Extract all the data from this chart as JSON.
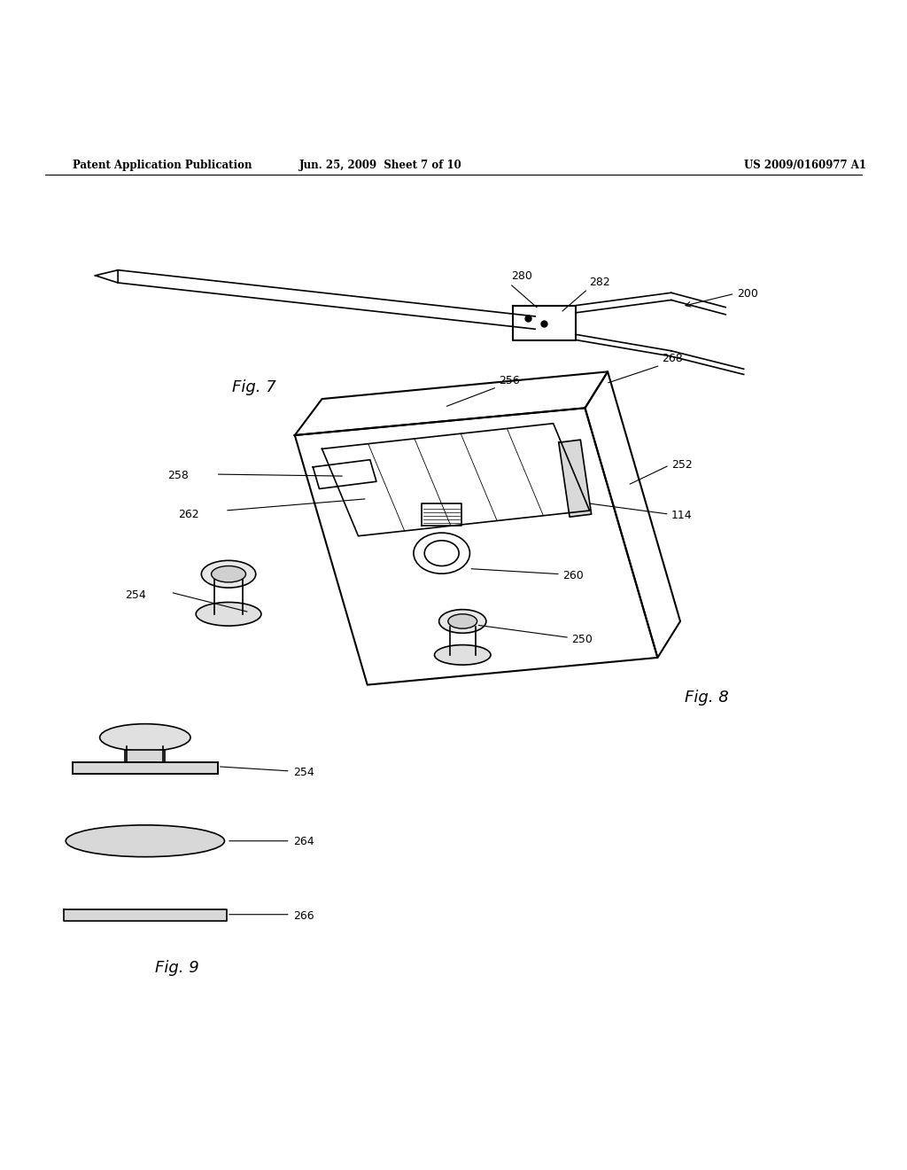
{
  "header_left": "Patent Application Publication",
  "header_center": "Jun. 25, 2009  Sheet 7 of 10",
  "header_right": "US 2009/0160977 A1",
  "bg_color": "#ffffff",
  "line_color": "#000000",
  "fig7_label": "Fig. 7",
  "fig8_label": "Fig. 8",
  "fig9_label": "Fig. 9"
}
